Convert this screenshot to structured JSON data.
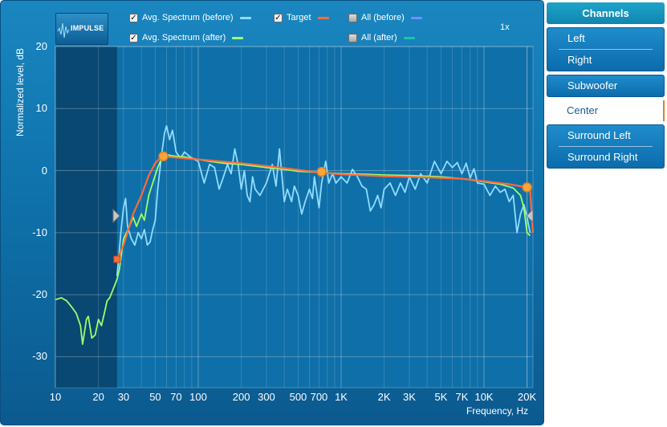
{
  "legend": [
    {
      "label": "Avg. Spectrum (before)",
      "checked": true,
      "color": "#8fdcff"
    },
    {
      "label": "Target",
      "checked": true,
      "color": "#ff6a3a"
    },
    {
      "label": "All (before)",
      "checked": false,
      "color": "#7a8cff"
    },
    {
      "label": "Avg. Spectrum (after)",
      "checked": true,
      "color": "#9cff6a"
    },
    {
      "label": "All (after)",
      "checked": false,
      "color": "#19c8a0"
    }
  ],
  "logo": {
    "text": "IMPULSE"
  },
  "zoom": "1x",
  "chart_data": {
    "type": "line",
    "xscale": "log",
    "xlim": [
      10,
      22000
    ],
    "ylim": [
      -35,
      20
    ],
    "ylabel": "Normalized level, dB",
    "xlabel": "Frequency, Hz",
    "yticks": [
      20,
      10,
      0,
      -10,
      -20,
      -30
    ],
    "xticks": [
      {
        "v": 10,
        "label": "10"
      },
      {
        "v": 20,
        "label": "20"
      },
      {
        "v": 30,
        "label": "30"
      },
      {
        "v": 50,
        "label": "50"
      },
      {
        "v": 70,
        "label": "70"
      },
      {
        "v": 100,
        "label": "100"
      },
      {
        "v": 200,
        "label": "200"
      },
      {
        "v": 300,
        "label": "300"
      },
      {
        "v": 500,
        "label": "500"
      },
      {
        "v": 700,
        "label": "700"
      },
      {
        "v": 1000,
        "label": "1K"
      },
      {
        "v": 2000,
        "label": "2K"
      },
      {
        "v": 3000,
        "label": "3K"
      },
      {
        "v": 5000,
        "label": "5K"
      },
      {
        "v": 7000,
        "label": "7K"
      },
      {
        "v": 10000,
        "label": "10K"
      },
      {
        "v": 20000,
        "label": "20K"
      }
    ],
    "excluded_region": [
      10,
      27
    ],
    "series": [
      {
        "name": "Avg. Spectrum (before)",
        "color": "#8fdcff",
        "points": [
          [
            27,
            -17
          ],
          [
            28,
            -13
          ],
          [
            29,
            -9
          ],
          [
            30,
            -6
          ],
          [
            31,
            -4.5
          ],
          [
            32,
            -9
          ],
          [
            34,
            -11
          ],
          [
            36,
            -12
          ],
          [
            38,
            -10
          ],
          [
            40,
            -11
          ],
          [
            42,
            -9.5
          ],
          [
            44,
            -12
          ],
          [
            46,
            -11.5
          ],
          [
            48,
            -9.5
          ],
          [
            50,
            -8
          ],
          [
            52,
            -3
          ],
          [
            55,
            2
          ],
          [
            58,
            6
          ],
          [
            60,
            7.2
          ],
          [
            63,
            5
          ],
          [
            66,
            6.5
          ],
          [
            70,
            3
          ],
          [
            75,
            2
          ],
          [
            80,
            3
          ],
          [
            90,
            2
          ],
          [
            100,
            1.5
          ],
          [
            110,
            -2
          ],
          [
            120,
            1
          ],
          [
            130,
            0.5
          ],
          [
            140,
            -3
          ],
          [
            150,
            -1
          ],
          [
            160,
            1
          ],
          [
            170,
            -0.5
          ],
          [
            180,
            3.5
          ],
          [
            190,
            1
          ],
          [
            200,
            -3
          ],
          [
            210,
            0
          ],
          [
            220,
            -4
          ],
          [
            230,
            -5
          ],
          [
            240,
            -1
          ],
          [
            250,
            -3
          ],
          [
            270,
            -4
          ],
          [
            300,
            -2
          ],
          [
            330,
            1
          ],
          [
            350,
            -2.5
          ],
          [
            370,
            3.5
          ],
          [
            400,
            -5
          ],
          [
            420,
            -3
          ],
          [
            450,
            -5
          ],
          [
            470,
            -2.5
          ],
          [
            500,
            -4
          ],
          [
            530,
            -7
          ],
          [
            560,
            -5
          ],
          [
            600,
            -3
          ],
          [
            630,
            -4.5
          ],
          [
            650,
            -1
          ],
          [
            700,
            -6
          ],
          [
            730,
            -2
          ],
          [
            780,
            1.5
          ],
          [
            820,
            -2
          ],
          [
            870,
            -0.5
          ],
          [
            920,
            -2
          ],
          [
            1000,
            -1
          ],
          [
            1100,
            -2
          ],
          [
            1200,
            0.2
          ],
          [
            1300,
            -1
          ],
          [
            1400,
            -2.5
          ],
          [
            1500,
            -3
          ],
          [
            1600,
            -6.5
          ],
          [
            1700,
            -5.5
          ],
          [
            1800,
            -4
          ],
          [
            1900,
            -6
          ],
          [
            2000,
            -3
          ],
          [
            2200,
            -2
          ],
          [
            2400,
            -4
          ],
          [
            2600,
            -2
          ],
          [
            2800,
            -3.5
          ],
          [
            3000,
            -1
          ],
          [
            3300,
            -3
          ],
          [
            3600,
            -0.5
          ],
          [
            4000,
            -2
          ],
          [
            4500,
            1.5
          ],
          [
            5000,
            -0.5
          ],
          [
            5500,
            1.5
          ],
          [
            6000,
            0.5
          ],
          [
            6500,
            1.3
          ],
          [
            7000,
            -0.5
          ],
          [
            7500,
            1.2
          ],
          [
            8000,
            -1.2
          ],
          [
            8500,
            0.3
          ],
          [
            9000,
            -2
          ],
          [
            10000,
            -2.2
          ],
          [
            11000,
            -4
          ],
          [
            12000,
            -2.5
          ],
          [
            13000,
            -3.5
          ],
          [
            14000,
            -3
          ],
          [
            15000,
            -5
          ],
          [
            16000,
            -4
          ],
          [
            17000,
            -10
          ],
          [
            18000,
            -7
          ],
          [
            19000,
            -5.5
          ],
          [
            20000,
            -7.5
          ],
          [
            21000,
            -10
          ]
        ]
      },
      {
        "name": "Avg. Spectrum (after)",
        "color": "#9cff6a",
        "points": [
          [
            10,
            -20.8
          ],
          [
            11,
            -20.5
          ],
          [
            12,
            -21
          ],
          [
            13,
            -22
          ],
          [
            14,
            -23
          ],
          [
            15,
            -25
          ],
          [
            15.5,
            -28
          ],
          [
            16,
            -26
          ],
          [
            16.5,
            -24
          ],
          [
            17,
            -23.5
          ],
          [
            18,
            -27
          ],
          [
            19,
            -26.5
          ],
          [
            20,
            -24
          ],
          [
            21,
            -25
          ],
          [
            22,
            -23
          ],
          [
            23,
            -21
          ],
          [
            24,
            -20.5
          ],
          [
            25,
            -19.5
          ],
          [
            26,
            -18.5
          ],
          [
            27,
            -17.5
          ],
          [
            28,
            -16
          ],
          [
            30,
            -11
          ],
          [
            33,
            -9
          ],
          [
            35,
            -7.5
          ],
          [
            37,
            -9
          ],
          [
            40,
            -7
          ],
          [
            42,
            -8
          ],
          [
            45,
            -4
          ],
          [
            48,
            -2
          ],
          [
            52,
            0.5
          ],
          [
            56,
            2.2
          ],
          [
            60,
            2.6
          ],
          [
            65,
            2.4
          ],
          [
            70,
            2.3
          ],
          [
            80,
            2.2
          ],
          [
            90,
            2
          ],
          [
            100,
            1.8
          ],
          [
            120,
            1.5
          ],
          [
            150,
            1.2
          ],
          [
            200,
            1
          ],
          [
            300,
            0.5
          ],
          [
            400,
            0.2
          ],
          [
            500,
            -0.1
          ],
          [
            700,
            -0.3
          ],
          [
            1000,
            -0.5
          ],
          [
            1500,
            -0.6
          ],
          [
            2000,
            -0.7
          ],
          [
            3000,
            -0.8
          ],
          [
            5000,
            -1
          ],
          [
            7000,
            -1.3
          ],
          [
            10000,
            -1.8
          ],
          [
            13000,
            -2.2
          ],
          [
            16000,
            -2.8
          ],
          [
            18000,
            -4
          ],
          [
            19000,
            -6
          ],
          [
            20000,
            -10
          ],
          [
            21000,
            -10.5
          ]
        ]
      },
      {
        "name": "Target",
        "color": "#ff6a3a",
        "points": [
          [
            27,
            -14.3
          ],
          [
            30,
            -12
          ],
          [
            35,
            -7
          ],
          [
            40,
            -4
          ],
          [
            45,
            -0.8
          ],
          [
            50,
            1.2
          ],
          [
            55,
            2.2
          ],
          [
            57,
            2.3
          ],
          [
            70,
            2.1
          ],
          [
            100,
            1.8
          ],
          [
            200,
            1.2
          ],
          [
            400,
            0.4
          ],
          [
            700,
            -0.3
          ],
          [
            1000,
            -0.6
          ],
          [
            2000,
            -0.9
          ],
          [
            4000,
            -1.1
          ],
          [
            7000,
            -1.3
          ],
          [
            10000,
            -1.7
          ],
          [
            15000,
            -2.2
          ],
          [
            20000,
            -2.7
          ],
          [
            21000,
            -3
          ],
          [
            22000,
            -10
          ]
        ]
      }
    ],
    "control_points": [
      [
        27,
        -14.3
      ],
      [
        57,
        2.3
      ],
      [
        730,
        -0.2
      ],
      [
        20000,
        -2.7
      ]
    ]
  },
  "channels": {
    "header": "Channels",
    "groups": [
      {
        "items": [
          "Left",
          "Right"
        ]
      },
      {
        "items": [
          "Subwoofer"
        ]
      },
      {
        "items": [
          "Center"
        ],
        "selected": true
      },
      {
        "items": [
          "Surround Left",
          "Surround Right"
        ]
      }
    ]
  }
}
